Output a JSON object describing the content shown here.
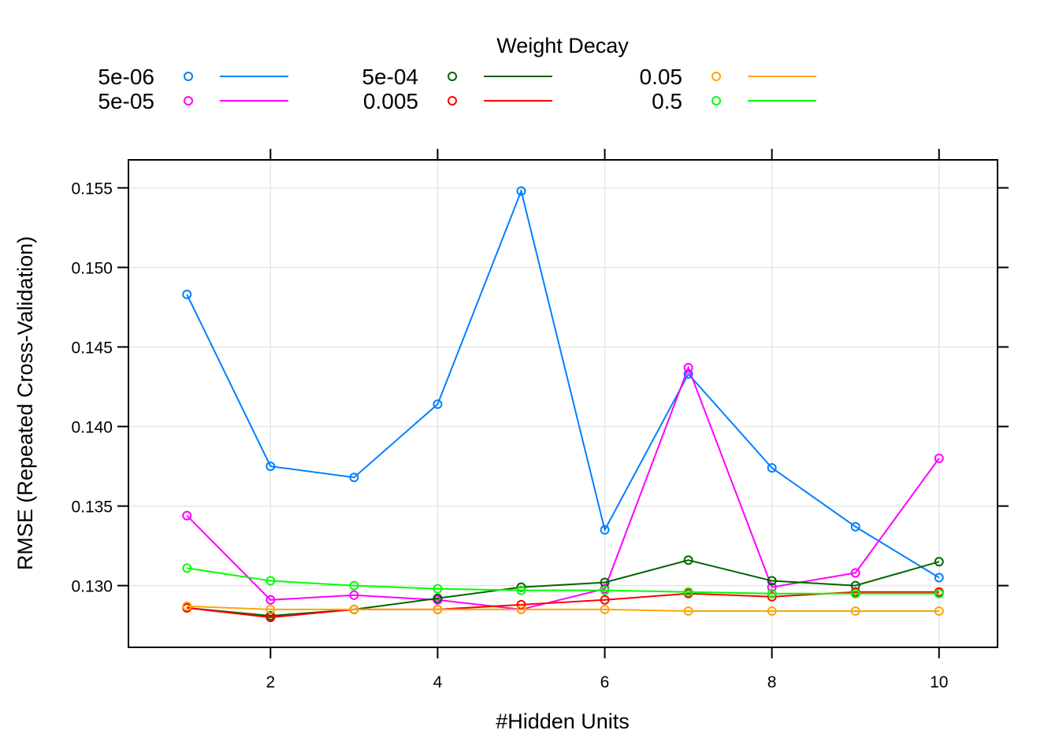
{
  "chart_data": {
    "type": "line",
    "title": "",
    "xlabel": "#Hidden Units",
    "ylabel": "RMSE (Repeated Cross-Validation)",
    "xlim": [
      0.3,
      10.7
    ],
    "ylim": [
      0.12612,
      0.15676
    ],
    "x_ticks": [
      2,
      4,
      6,
      8,
      10
    ],
    "y_ticks": [
      0.13,
      0.135,
      0.14,
      0.145,
      0.15,
      0.155
    ],
    "y_tick_labels": [
      "0.130",
      "0.135",
      "0.140",
      "0.145",
      "0.150",
      "0.155"
    ],
    "grid": true,
    "legend": {
      "title": "Weight Decay",
      "placement": "top"
    },
    "x": [
      1,
      2,
      3,
      4,
      5,
      6,
      7,
      8,
      9,
      10
    ],
    "series": [
      {
        "name": "5e-06",
        "color": "#0080ff",
        "values": [
          0.1483,
          0.1375,
          0.1368,
          0.1414,
          0.1548,
          0.1335,
          0.1433,
          0.1374,
          0.1337,
          0.1305
        ]
      },
      {
        "name": "5e-05",
        "color": "#ff00ff",
        "values": [
          0.1344,
          0.1291,
          0.1294,
          0.1291,
          0.1285,
          0.1298,
          0.1437,
          0.1299,
          0.1308,
          0.138
        ]
      },
      {
        "name": "5e-04",
        "color": "#006400",
        "values": [
          0.1286,
          0.1281,
          0.1285,
          0.1292,
          0.1299,
          0.1302,
          0.1316,
          0.1303,
          0.13,
          0.1315
        ]
      },
      {
        "name": "0.005",
        "color": "#ff0000",
        "values": [
          0.1286,
          0.128,
          0.1285,
          0.1285,
          0.1288,
          0.1291,
          0.1295,
          0.1293,
          0.1296,
          0.1296
        ]
      },
      {
        "name": "0.05",
        "color": "#ffa500",
        "values": [
          0.1287,
          0.1285,
          0.1285,
          0.1285,
          0.1285,
          0.1285,
          0.1284,
          0.1284,
          0.1284,
          0.1284
        ]
      },
      {
        "name": "0.5",
        "color": "#00ff00",
        "values": [
          0.1311,
          0.1303,
          0.13,
          0.1298,
          0.1297,
          0.1297,
          0.1296,
          0.1295,
          0.1295,
          0.1295
        ]
      }
    ]
  }
}
